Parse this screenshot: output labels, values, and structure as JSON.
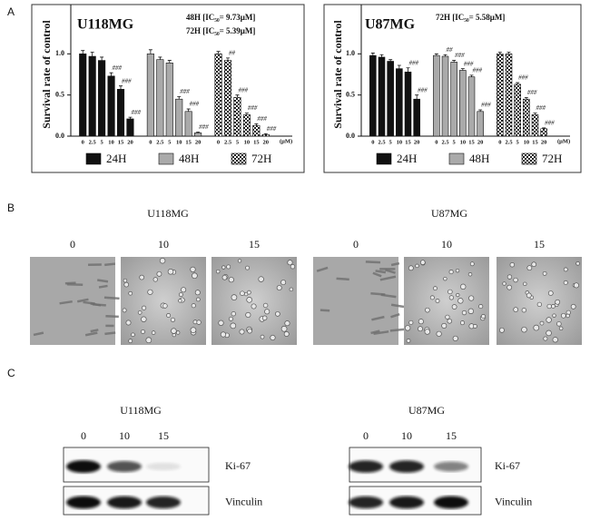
{
  "panel_labels": [
    "A",
    "B",
    "C"
  ],
  "chart_data": [
    {
      "type": "bar",
      "title": "U118MG",
      "annotations": [
        "48H [IC₅₀= 9.73μM]",
        "72H [IC₅₀= 5.39μM]"
      ],
      "y_label": "Survival rate of control",
      "categories": [
        "0",
        "2.5",
        "5",
        "10",
        "15",
        "20"
      ],
      "x_unit": "(μM)",
      "ylim": [
        0,
        1.5
      ],
      "yticks": [
        {
          "value": 0,
          "label": "0.0"
        },
        {
          "value": 0.5,
          "label": "0.5"
        },
        {
          "value": 1,
          "label": "1.0"
        }
      ],
      "series": [
        {
          "name": "24H",
          "color": "#111111",
          "values": [
            1.0,
            0.97,
            0.92,
            0.73,
            0.57,
            0.21
          ],
          "errors": [
            0.04,
            0.05,
            0.04,
            0.04,
            0.04,
            0.02
          ],
          "significance": [
            null,
            null,
            null,
            "###",
            "###",
            "###"
          ]
        },
        {
          "name": "48H",
          "color": "#aaaaaa",
          "values": [
            1.0,
            0.93,
            0.89,
            0.45,
            0.3,
            0.04
          ],
          "errors": [
            0.05,
            0.03,
            0.03,
            0.03,
            0.03,
            0.01
          ],
          "significance": [
            null,
            null,
            null,
            "###",
            "###",
            "###"
          ]
        },
        {
          "name": "72H",
          "color": "#ffffff",
          "pattern": "checker",
          "values": [
            1.0,
            0.92,
            0.47,
            0.26,
            0.13,
            0.02
          ],
          "errors": [
            0.03,
            0.03,
            0.03,
            0.02,
            0.02,
            0.01
          ],
          "significance": [
            null,
            "##",
            "###",
            "###",
            "###",
            "###"
          ]
        }
      ]
    },
    {
      "type": "bar",
      "title": "U87MG",
      "annotations": [
        "72H [IC₅₀= 5.58μM]"
      ],
      "y_label": "Survival rate of control",
      "categories": [
        "0",
        "2.5",
        "5",
        "10",
        "15",
        "20"
      ],
      "x_unit": "(μM)",
      "ylim": [
        0,
        1.5
      ],
      "yticks": [
        {
          "value": 0,
          "label": "0.0"
        },
        {
          "value": 0.5,
          "label": "0.5"
        },
        {
          "value": 1,
          "label": "1.0"
        }
      ],
      "series": [
        {
          "name": "24H",
          "color": "#111111",
          "values": [
            0.98,
            0.96,
            0.91,
            0.82,
            0.78,
            0.45
          ],
          "errors": [
            0.03,
            0.03,
            0.02,
            0.04,
            0.05,
            0.05
          ],
          "significance": [
            null,
            null,
            null,
            null,
            "###",
            "###"
          ]
        },
        {
          "name": "48H",
          "color": "#aaaaaa",
          "values": [
            0.98,
            0.97,
            0.9,
            0.8,
            0.72,
            0.3
          ],
          "errors": [
            0.02,
            0.02,
            0.02,
            0.02,
            0.02,
            0.02
          ],
          "significance": [
            null,
            "##",
            "###",
            "###",
            "###",
            "###"
          ]
        },
        {
          "name": "72H",
          "color": "#ffffff",
          "pattern": "checker",
          "values": [
            1.0,
            1.0,
            0.63,
            0.45,
            0.26,
            0.09
          ],
          "errors": [
            0.02,
            0.02,
            0.02,
            0.02,
            0.02,
            0.01
          ],
          "significance": [
            null,
            null,
            "###",
            "###",
            "###",
            "###"
          ]
        }
      ]
    }
  ],
  "panel_b": {
    "cell_lines": [
      {
        "name": "U118MG",
        "doses": [
          "0",
          "10",
          "15"
        ]
      },
      {
        "name": "U87MG",
        "doses": [
          "0",
          "10",
          "15"
        ]
      }
    ]
  },
  "panel_c": {
    "cell_lines": [
      {
        "name": "U118MG",
        "doses": [
          "0",
          "10",
          "15"
        ],
        "proteins": [
          "Ki-67",
          "Vinculin"
        ]
      },
      {
        "name": "U87MG",
        "doses": [
          "0",
          "10",
          "15"
        ],
        "proteins": [
          "Ki-67",
          "Vinculin"
        ]
      }
    ]
  }
}
